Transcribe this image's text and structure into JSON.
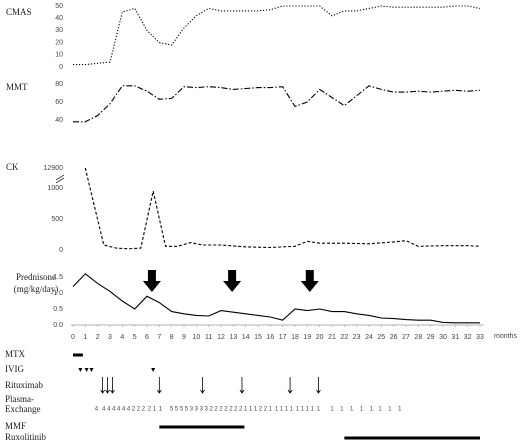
{
  "chart_data": [
    {
      "type": "line",
      "ylabel": "CMAS",
      "line_style": "dotted",
      "color": "#000000",
      "x": [
        0,
        1,
        2,
        3,
        4,
        5,
        6,
        7,
        8,
        9,
        10,
        11,
        12,
        13,
        14,
        15,
        16,
        17,
        18,
        19,
        20,
        21,
        22,
        23,
        24,
        25,
        26,
        27,
        28,
        29,
        30,
        31,
        32,
        33
      ],
      "values": [
        2,
        2,
        3,
        4,
        45,
        48,
        30,
        20,
        18,
        32,
        42,
        48,
        46,
        46,
        46,
        46,
        47,
        50,
        50,
        50,
        50,
        42,
        46,
        46,
        48,
        50,
        49,
        49,
        49,
        49,
        49,
        50,
        50,
        48
      ],
      "xlim": [
        0,
        33
      ],
      "ylim": [
        0,
        50
      ],
      "yticks": [
        0,
        10,
        20,
        30,
        40,
        50
      ]
    },
    {
      "type": "line",
      "ylabel": "MMT",
      "line_style": "dashdot",
      "color": "#000000",
      "x": [
        0,
        1,
        2,
        3,
        4,
        5,
        6,
        7,
        8,
        9,
        10,
        11,
        12,
        13,
        14,
        15,
        16,
        17,
        18,
        19,
        20,
        21,
        22,
        23,
        24,
        25,
        26,
        27,
        28,
        29,
        30,
        31,
        32,
        33
      ],
      "values": [
        38,
        38,
        45,
        58,
        78,
        78,
        72,
        63,
        64,
        77,
        76,
        77,
        76,
        74,
        75,
        76,
        76,
        77,
        55,
        60,
        74,
        65,
        56,
        67,
        78,
        74,
        71,
        71,
        72,
        71,
        72,
        73,
        72,
        73
      ],
      "xlim": [
        0,
        33
      ],
      "ylim": [
        30,
        80
      ],
      "yticks": [
        40,
        60,
        80
      ]
    },
    {
      "type": "line",
      "ylabel": "CK",
      "line_style": "dashed",
      "color": "#000000",
      "x": [
        1,
        1.5,
        2.5,
        3.5,
        4.5,
        5.5,
        6.5,
        7.5,
        8.5,
        9.5,
        10.5,
        12,
        14,
        16,
        17,
        18,
        19,
        20,
        22,
        24,
        26,
        27,
        28,
        30,
        32,
        33
      ],
      "values": [
        12900,
        900,
        80,
        30,
        20,
        30,
        950,
        60,
        60,
        120,
        80,
        80,
        50,
        40,
        50,
        60,
        140,
        110,
        110,
        100,
        130,
        150,
        60,
        70,
        70,
        60
      ],
      "xlim": [
        0,
        33
      ],
      "ylim": [
        0,
        12900
      ],
      "axis_break": [
        1000,
        12900
      ],
      "yticks": [
        0,
        500,
        1000,
        12900
      ]
    },
    {
      "type": "line",
      "ylabel": "Prednisone",
      "ylabel_unit": "(mg/kg/day)",
      "line_style": "solid",
      "color": "#000000",
      "x": [
        0,
        1,
        2,
        3,
        4,
        5,
        6,
        7,
        8,
        9,
        10,
        11,
        12,
        13,
        14,
        15,
        16,
        17,
        18,
        19,
        20,
        21,
        22,
        23,
        24,
        25,
        26,
        27,
        28,
        29,
        30,
        31,
        32,
        33
      ],
      "values": [
        1.2,
        1.6,
        1.3,
        1.05,
        0.75,
        0.5,
        0.9,
        0.7,
        0.42,
        0.35,
        0.3,
        0.28,
        0.45,
        0.4,
        0.35,
        0.3,
        0.25,
        0.15,
        0.5,
        0.45,
        0.5,
        0.42,
        0.42,
        0.35,
        0.3,
        0.22,
        0.2,
        0.17,
        0.15,
        0.15,
        0.08,
        0.07,
        0.07,
        0.07
      ],
      "pulse_x": [
        6.4,
        12.9,
        19.2
      ],
      "xlim": [
        0,
        33
      ],
      "ylim": [
        0,
        1.5
      ],
      "yticks": [
        {
          "value": 0,
          "label": "0.0"
        },
        0.5,
        {
          "value": 1,
          "label": "1.0"
        },
        1.5
      ],
      "xticks": [
        0,
        1,
        2,
        3,
        4,
        5,
        6,
        7,
        8,
        9,
        10,
        11,
        12,
        13,
        14,
        15,
        16,
        17,
        18,
        19,
        20,
        21,
        22,
        23,
        24,
        25,
        26,
        27,
        28,
        29,
        30,
        31,
        32,
        33
      ],
      "xlabel": "months"
    },
    {
      "type": "timeline",
      "xlim": [
        0,
        33
      ],
      "rows": [
        {
          "label": "MTX",
          "kind": "span",
          "spans": [
            [
              0,
              0.8
            ]
          ]
        },
        {
          "label": "IVIG",
          "kind": "triangle",
          "x": [
            0.6,
            1.1,
            1.5,
            6.5
          ]
        },
        {
          "label": "Rituximab",
          "kind": "arrow",
          "x": [
            2.4,
            2.8,
            3.2,
            7.0,
            10.5,
            13.7,
            17.6,
            19.9
          ]
        },
        {
          "label": [
            "Plasma-",
            "Exchange"
          ],
          "kind": "count",
          "x": [
            1.9,
            2.5,
            2.9,
            3.3,
            3.7,
            4.1,
            4.5,
            4.9,
            5.3,
            5.7,
            6.2,
            6.6,
            7.1,
            8.0,
            8.4,
            8.8,
            9.2,
            9.6,
            10.0,
            10.4,
            10.8,
            11.2,
            11.6,
            12.0,
            12.4,
            12.8,
            13.2,
            13.6,
            14.0,
            14.4,
            14.8,
            15.2,
            15.6,
            16.0,
            16.5,
            16.9,
            17.3,
            17.7,
            18.2,
            18.6,
            19.0,
            19.4,
            19.9,
            21.0,
            21.8,
            22.6,
            23.4,
            24.2,
            24.9,
            25.7,
            26.5
          ],
          "values": [
            4,
            4,
            4,
            4,
            4,
            4,
            4,
            2,
            2,
            2,
            2,
            1,
            1,
            5,
            5,
            5,
            5,
            3,
            3,
            3,
            3,
            2,
            2,
            2,
            2,
            2,
            2,
            2,
            1,
            1,
            1,
            2,
            2,
            1,
            1,
            1,
            1,
            1,
            1,
            1,
            1,
            1,
            1,
            1,
            1,
            1,
            1,
            1,
            1,
            1,
            1
          ]
        },
        {
          "label": "MMF",
          "kind": "span",
          "spans": [
            [
              7,
              13.9
            ]
          ]
        },
        {
          "label": "Ruxolitinib",
          "kind": "span",
          "spans": [
            [
              22,
              33
            ]
          ]
        }
      ]
    }
  ]
}
